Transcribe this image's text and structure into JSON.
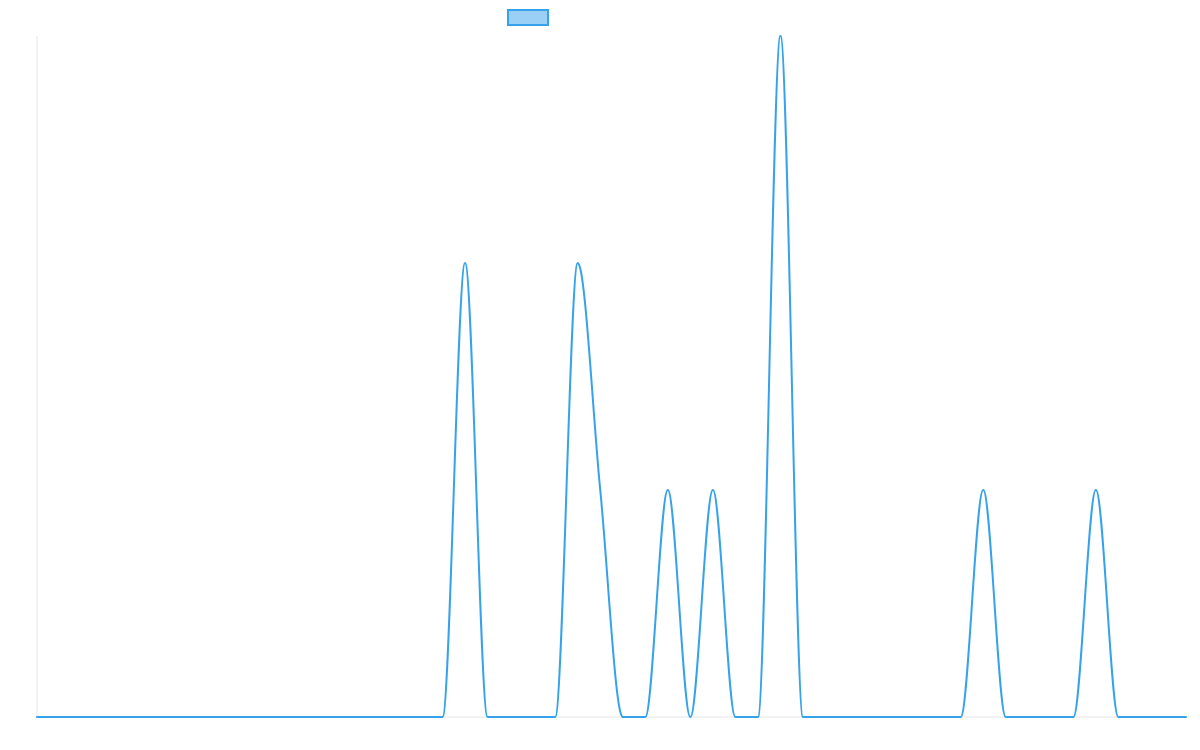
{
  "chart_data": {
    "type": "line",
    "title": "",
    "xlabel": "",
    "ylabel": "",
    "grid": false,
    "legend": "top-center",
    "x": [
      0,
      1,
      2,
      3,
      4,
      5,
      6,
      7,
      8,
      9,
      10,
      11,
      12,
      13,
      14,
      15,
      16,
      17,
      18,
      19,
      20,
      21,
      22,
      23,
      24,
      25,
      26,
      27,
      28,
      29,
      30,
      31,
      32,
      33,
      34,
      35,
      36,
      37,
      38,
      39,
      40,
      41,
      42,
      43,
      44,
      45,
      46,
      47,
      48,
      49,
      50,
      51
    ],
    "xlim": [
      0,
      51
    ],
    "ylim": [
      0,
      3
    ],
    "series": [
      {
        "name": "",
        "color": "#36a2eb",
        "fill": "#9ad0f5",
        "values": [
          0,
          0,
          0,
          0,
          0,
          0,
          0,
          0,
          0,
          0,
          0,
          0,
          0,
          0,
          0,
          0,
          0,
          0,
          0,
          2,
          0,
          0,
          0,
          0,
          2,
          1,
          0,
          0,
          1,
          0,
          1,
          0,
          0,
          3,
          0,
          0,
          0,
          0,
          0,
          0,
          0,
          0,
          1,
          0,
          0,
          0,
          0,
          1,
          0,
          0,
          0,
          0
        ]
      }
    ]
  }
}
